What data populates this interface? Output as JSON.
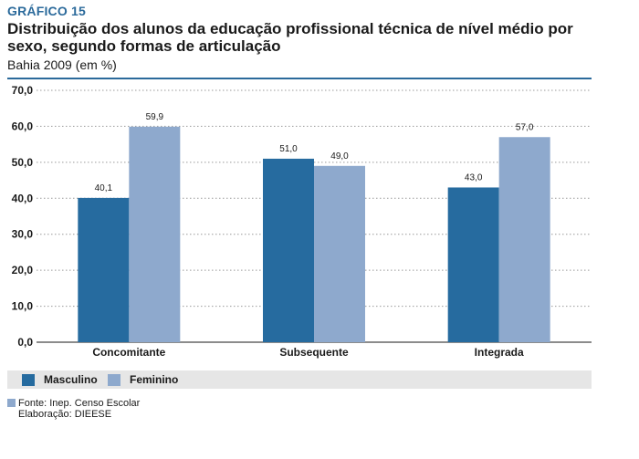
{
  "header": {
    "tag": "GRÁFICO 15",
    "title": "Distribuição dos alunos da educação profissional técnica de nível médio por sexo, segundo formas de articulação",
    "subtitle": "Bahia 2009 (em %)"
  },
  "colors": {
    "masculino": "#266b9f",
    "feminino": "#8ea9cd",
    "accent": "#2b6a9b"
  },
  "chart_data": {
    "type": "bar",
    "categories": [
      "Concomitante",
      "Subsequente",
      "Integrada"
    ],
    "series": [
      {
        "name": "Masculino",
        "values": [
          40.1,
          51.0,
          43.0
        ],
        "labels": [
          "40,1",
          "51,0",
          "43,0"
        ]
      },
      {
        "name": "Feminino",
        "values": [
          59.9,
          49.0,
          57.0
        ],
        "labels": [
          "59,9",
          "49,0",
          "57,0"
        ]
      }
    ],
    "ylim": [
      0,
      70
    ],
    "yticks": [
      0,
      10,
      20,
      30,
      40,
      50,
      60,
      70
    ],
    "ytick_labels": [
      "0,0",
      "10,0",
      "20,0",
      "30,0",
      "40,0",
      "50,0",
      "60,0",
      "70,0"
    ],
    "grid": true,
    "legend": "bottom"
  },
  "footer": {
    "source": "Fonte: Inep. Censo Escolar",
    "credit": "Elaboração: DIEESE"
  }
}
